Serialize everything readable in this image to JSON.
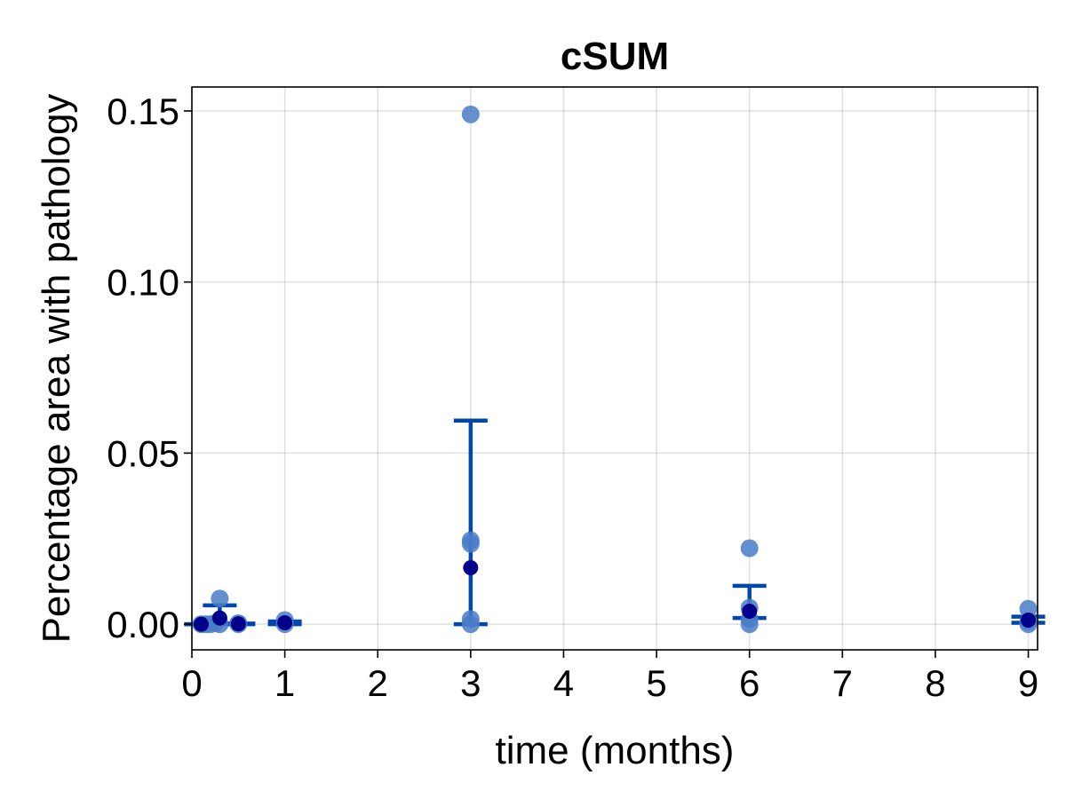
{
  "chart_data": {
    "type": "scatter",
    "title": "cSUM",
    "xlabel": "time (months)",
    "ylabel": "Percentage area with pathology",
    "xlim": [
      0,
      9.1
    ],
    "ylim": [
      -0.0075,
      0.157
    ],
    "xticks": [
      0,
      1,
      2,
      3,
      4,
      5,
      6,
      7,
      8,
      9
    ],
    "xtick_labels": [
      "0",
      "1",
      "2",
      "3",
      "4",
      "5",
      "6",
      "7",
      "8",
      "9"
    ],
    "yticks": [
      0.0,
      0.05,
      0.1,
      0.15
    ],
    "ytick_labels": [
      "0.00",
      "0.05",
      "0.10",
      "0.15"
    ],
    "grid": true,
    "colors": {
      "points": "#4a7cc8",
      "points_opacity": 0.85,
      "mean": "#00008b",
      "errorbar": "#0047ab"
    },
    "individual_points": [
      {
        "x": 0.1,
        "y": 0.0
      },
      {
        "x": 0.15,
        "y": 0.0
      },
      {
        "x": 0.2,
        "y": 0.0
      },
      {
        "x": 0.25,
        "y": 0.0003
      },
      {
        "x": 0.3,
        "y": 0.0075
      },
      {
        "x": 0.3,
        "y": 0.0
      },
      {
        "x": 0.5,
        "y": 0.0
      },
      {
        "x": 0.5,
        "y": 0.0003
      },
      {
        "x": 1.0,
        "y": 0.0012
      },
      {
        "x": 1.0,
        "y": 0.0
      },
      {
        "x": 3.0,
        "y": 0.149
      },
      {
        "x": 3.0,
        "y": 0.0245
      },
      {
        "x": 3.0,
        "y": 0.0235
      },
      {
        "x": 3.0,
        "y": 0.0015
      },
      {
        "x": 3.0,
        "y": 0.0
      },
      {
        "x": 6.0,
        "y": 0.0222
      },
      {
        "x": 6.0,
        "y": 0.0048
      },
      {
        "x": 6.0,
        "y": 0.0015
      },
      {
        "x": 6.0,
        "y": 0.0
      },
      {
        "x": 9.0,
        "y": 0.0045
      },
      {
        "x": 9.0,
        "y": 0.0008
      },
      {
        "x": 9.0,
        "y": 0.0
      }
    ],
    "summary": [
      {
        "x": 0.1,
        "mean": 0.0,
        "lower": 0.0,
        "upper": 0.0
      },
      {
        "x": 0.3,
        "mean": 0.0018,
        "lower": 0.0,
        "upper": 0.0055
      },
      {
        "x": 0.5,
        "mean": 0.0001,
        "lower": 0.0,
        "upper": 0.0002
      },
      {
        "x": 1.0,
        "mean": 0.0004,
        "lower": 0.0,
        "upper": 0.0008
      },
      {
        "x": 3.0,
        "mean": 0.0165,
        "lower": 0.0,
        "upper": 0.0595
      },
      {
        "x": 6.0,
        "mean": 0.0038,
        "lower": 0.0018,
        "upper": 0.0112
      },
      {
        "x": 9.0,
        "mean": 0.0012,
        "lower": 0.0004,
        "upper": 0.0022
      }
    ]
  }
}
